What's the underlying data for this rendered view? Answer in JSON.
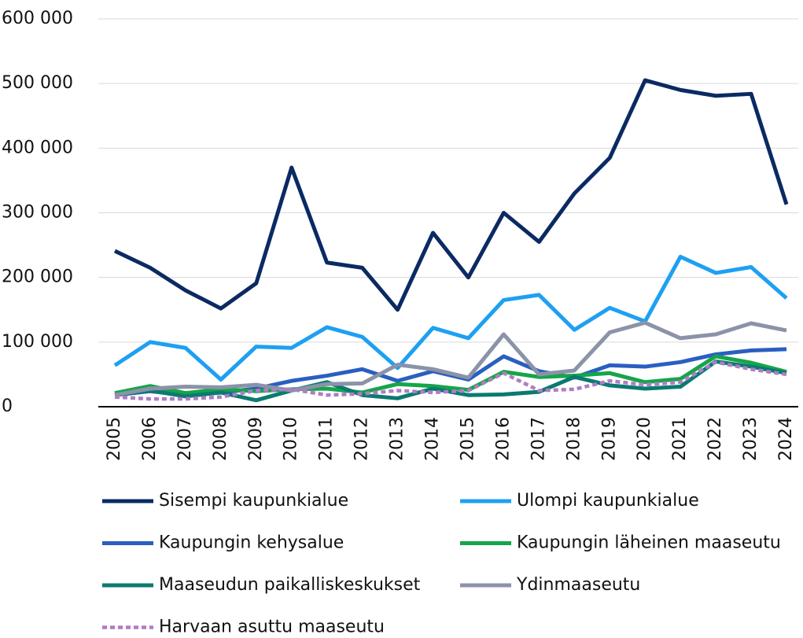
{
  "chart_data": {
    "type": "line",
    "categories": [
      "2005",
      "2006",
      "2007",
      "2008",
      "2009",
      "2010",
      "2011",
      "2012",
      "2013",
      "2014",
      "2015",
      "2016",
      "2017",
      "2018",
      "2019",
      "2020",
      "2021",
      "2022",
      "2023",
      "2024"
    ],
    "ylim": [
      0,
      600000
    ],
    "yticks": [
      {
        "value": 0,
        "label": "0"
      },
      {
        "value": 100000,
        "label": "100 000"
      },
      {
        "value": 200000,
        "label": "200 000"
      },
      {
        "value": 300000,
        "label": "300 000"
      },
      {
        "value": 400000,
        "label": "400 000"
      },
      {
        "value": 500000,
        "label": "500 000"
      },
      {
        "value": 600000,
        "label": "600 000"
      }
    ],
    "grid": true,
    "series": [
      {
        "name": "Sisempi kaupunkialue",
        "color": "#0b2a63",
        "values": [
          241000,
          215000,
          180000,
          152000,
          191000,
          370000,
          223000,
          215000,
          150000,
          269000,
          200000,
          300000,
          255000,
          330000,
          385000,
          505000,
          490000,
          481000,
          484000,
          313000
        ]
      },
      {
        "name": "Ulompi kaupunkialue",
        "color": "#1ea0f2",
        "values": [
          64000,
          100000,
          91000,
          42000,
          93000,
          91000,
          123000,
          108000,
          60000,
          122000,
          106000,
          165000,
          173000,
          119000,
          153000,
          132000,
          232000,
          207000,
          216000,
          168000
        ]
      },
      {
        "name": "Kaupungin kehysalue",
        "color": "#2a5fc0",
        "values": [
          18000,
          24000,
          18000,
          22000,
          28000,
          40000,
          48000,
          58000,
          40000,
          55000,
          42000,
          78000,
          55000,
          45000,
          64000,
          62000,
          69000,
          81000,
          87000,
          89000
        ]
      },
      {
        "name": "Kaupungin läheinen maaseutu",
        "color": "#15a54a",
        "values": [
          21000,
          32000,
          21000,
          27000,
          24000,
          27000,
          28000,
          22000,
          35000,
          32000,
          26000,
          54000,
          46000,
          48000,
          52000,
          38000,
          43000,
          78000,
          68000,
          54000
        ]
      },
      {
        "name": "Maaseudun paikalliskeskukset",
        "color": "#0b7a70",
        "values": [
          18000,
          25000,
          16000,
          22000,
          10000,
          25000,
          38000,
          18000,
          13000,
          28000,
          18000,
          19000,
          23000,
          46000,
          33000,
          28000,
          31000,
          70000,
          62000,
          52000
        ]
      },
      {
        "name": "Ydinmaaseutu",
        "color": "#8b93a8",
        "values": [
          18000,
          28000,
          31000,
          30000,
          34000,
          25000,
          35000,
          36000,
          65000,
          58000,
          45000,
          112000,
          50000,
          56000,
          115000,
          130000,
          106000,
          112000,
          129000,
          118000
        ]
      },
      {
        "name": "Harvaan asuttu maaseutu",
        "color": "#b07cc6",
        "dashed": true,
        "values": [
          15000,
          12000,
          12000,
          15000,
          25000,
          27000,
          18000,
          20000,
          25000,
          22000,
          25000,
          52000,
          25000,
          27000,
          40000,
          34000,
          38000,
          69000,
          58000,
          50000
        ]
      }
    ]
  }
}
